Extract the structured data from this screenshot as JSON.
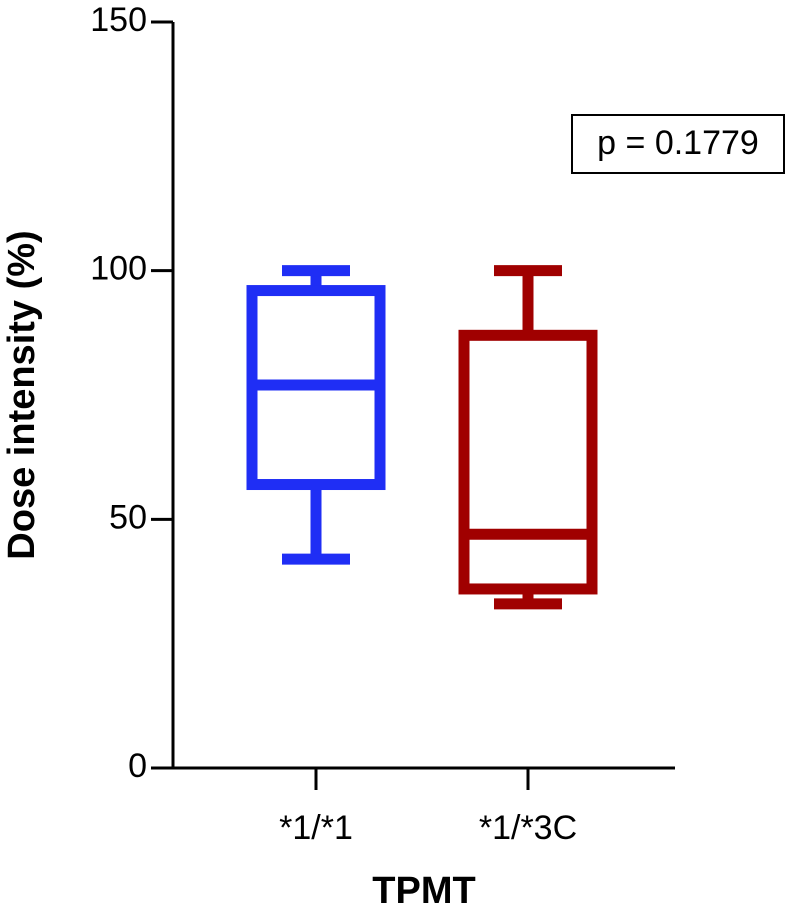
{
  "chart_data": {
    "type": "box",
    "y_label": "Dose intensity (%)",
    "x_label": "TPMT",
    "annotation": "p = 0.1779",
    "categories": [
      "*1/*1",
      "*1/*3C"
    ],
    "boxes": [
      {
        "color": "#1f2ef5",
        "min": 42,
        "q1": 57,
        "median": 77,
        "q3": 96,
        "max": 100
      },
      {
        "color": "#a00000",
        "min": 33,
        "q1": 36,
        "median": 47,
        "q3": 87,
        "max": 100
      }
    ],
    "ylim": [
      0,
      150
    ],
    "yticks": [
      0,
      50,
      100,
      150
    ]
  }
}
